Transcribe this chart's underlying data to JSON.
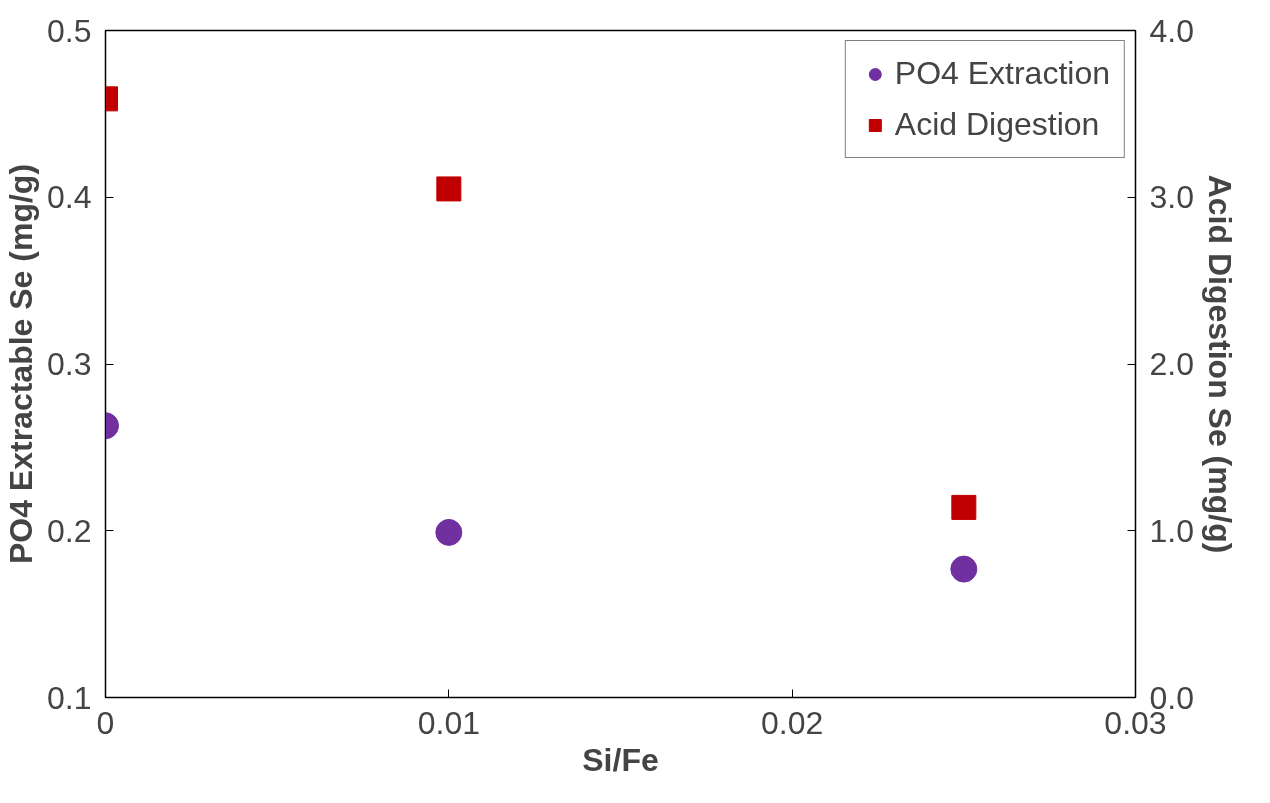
{
  "chart_data": {
    "type": "scatter",
    "xlabel": "Si/Fe",
    "ylabel": "PO4 Extractable Se (mg/g)",
    "y2label": "Acid Digestion Se (mg/g)",
    "x": [
      0,
      0.01,
      0.025
    ],
    "series": [
      {
        "name": "PO4 Extraction",
        "color": "#7030a0",
        "marker": "circle",
        "values": [
          0.263,
          0.199,
          0.177
        ]
      },
      {
        "name": "Acid Digestion",
        "color": "#c00000",
        "marker": "square",
        "axis": "y2",
        "values": [
          3.59,
          3.05,
          1.14
        ]
      }
    ],
    "xlim": [
      0,
      0.03
    ],
    "xticks": [
      0,
      0.01,
      0.02,
      0.03
    ],
    "ylim": [
      0.1,
      0.5
    ],
    "yticks": [
      0.1,
      0.2,
      0.3,
      0.4,
      0.5
    ],
    "y2lim": [
      0,
      4
    ],
    "y2ticks": [
      {
        "value": 0,
        "label": "0.0"
      },
      {
        "value": 1,
        "label": "1.0"
      },
      {
        "value": 2,
        "label": "2.0"
      },
      {
        "value": 3,
        "label": "3.0"
      },
      {
        "value": 4,
        "label": "4.0"
      }
    ],
    "grid": false,
    "legend": "top right"
  }
}
